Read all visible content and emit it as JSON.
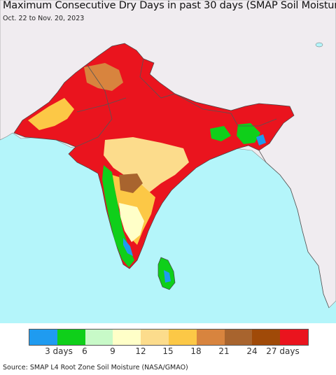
{
  "header": {
    "title": "Maximum Consecutive Dry Days in past 30 days (SMAP Soil Moisture)",
    "subtitle": "Oct. 22 to Nov. 20, 2023"
  },
  "legend": {
    "colors": [
      "#1f9bf0",
      "#0fcf1a",
      "#c8fac8",
      "#ffffc8",
      "#fcdc8c",
      "#fcc846",
      "#d8843e",
      "#a8642e",
      "#a04a08",
      "#ea141e"
    ],
    "labels": [
      "3 days",
      "6",
      "9",
      "12",
      "15",
      "18",
      "21",
      "24",
      "27 days"
    ]
  },
  "footer": {
    "source": "Source: SMAP L4 Root Zone Soil Moisture (NASA/GMAO)"
  },
  "map": {
    "ocean_color": "#b4f5fa",
    "land_outside_color": "#f0ecf0",
    "border_color": "#555555"
  }
}
